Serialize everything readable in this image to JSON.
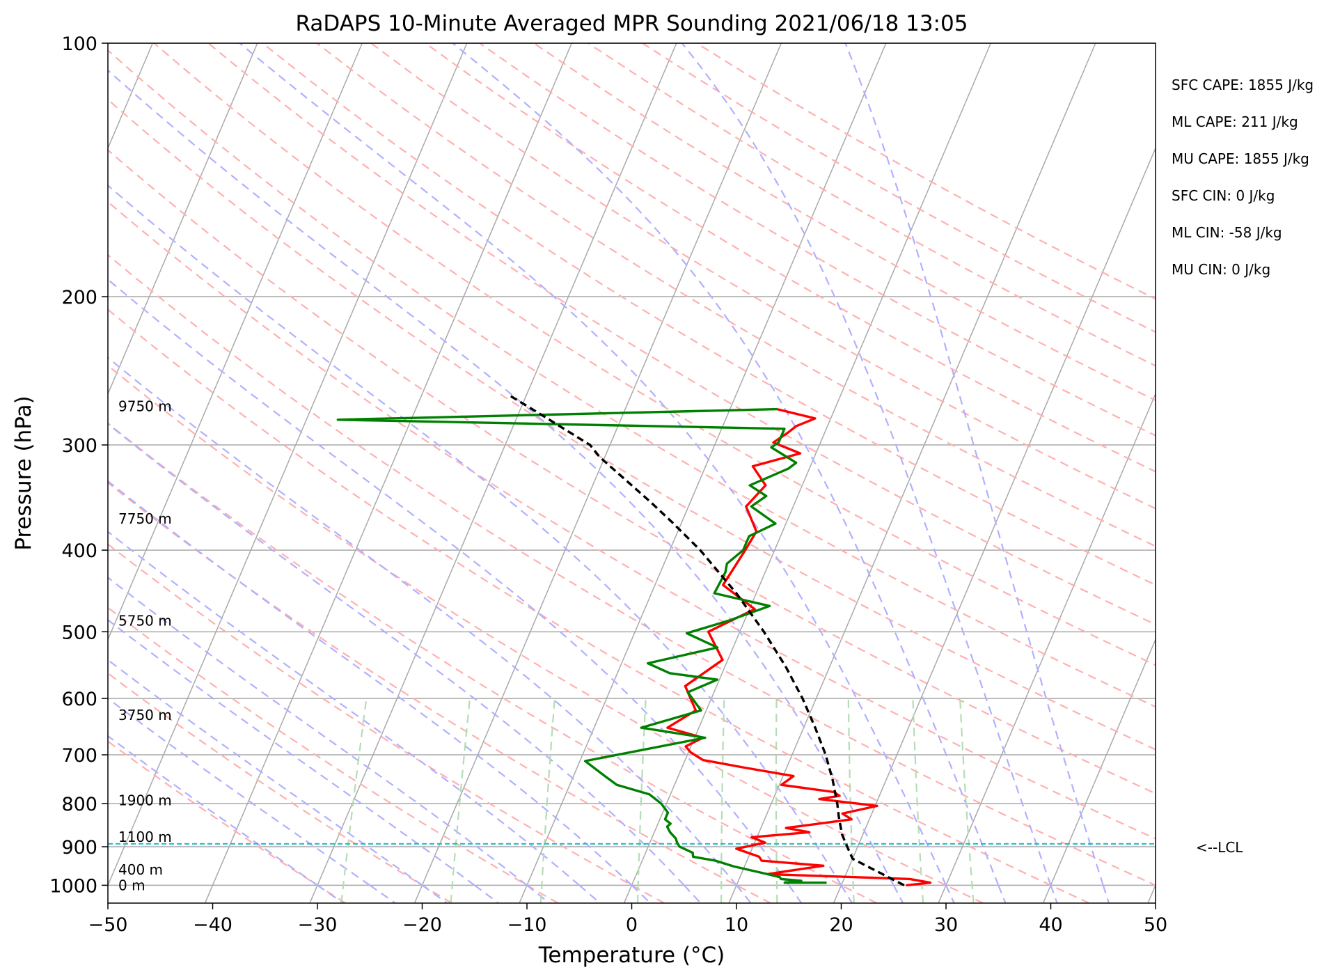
{
  "chart_data": {
    "type": "line",
    "title": "RaDAPS 10-Minute Averaged MPR Sounding 2021/06/18 13:05",
    "xlabel": "Temperature (°C)",
    "ylabel": "Pressure (hPa)",
    "xlim": [
      -50,
      50
    ],
    "ylim": [
      1050,
      100
    ],
    "y_scale": "log",
    "grid": true,
    "x_ticks": [
      "−50",
      "−40",
      "−30",
      "−20",
      "−10",
      "0",
      "10",
      "20",
      "30",
      "40",
      "50"
    ],
    "y_ticks": [
      "100",
      "200",
      "300",
      "400",
      "500",
      "600",
      "700",
      "800",
      "900",
      "1000"
    ],
    "series": [
      {
        "kind": "temperature",
        "color": "#ff0000",
        "points": [
          [
            26.2,
            1000
          ],
          [
            28.4,
            993
          ],
          [
            26.3,
            983
          ],
          [
            12.5,
            970
          ],
          [
            17.5,
            948
          ],
          [
            11.4,
            935
          ],
          [
            11.0,
            925
          ],
          [
            8.5,
            905
          ],
          [
            11.0,
            890
          ],
          [
            9.5,
            877
          ],
          [
            14.8,
            865
          ],
          [
            12.4,
            855
          ],
          [
            18.3,
            835
          ],
          [
            17.2,
            822
          ],
          [
            20.2,
            805
          ],
          [
            14.4,
            790
          ],
          [
            16.2,
            783
          ],
          [
            15.5,
            775
          ],
          [
            10.2,
            760
          ],
          [
            11.0,
            742
          ],
          [
            6.0,
            725
          ],
          [
            1.7,
            710
          ],
          [
            0.2,
            695
          ],
          [
            -0.5,
            684
          ],
          [
            0.8,
            668
          ],
          [
            -3.0,
            650
          ],
          [
            -1.0,
            620
          ],
          [
            -3.0,
            580
          ],
          [
            -0.5,
            540
          ],
          [
            -3.0,
            500
          ],
          [
            0.5,
            470
          ],
          [
            -3.5,
            440
          ],
          [
            -2.8,
            400
          ],
          [
            -2.5,
            380
          ],
          [
            -4.5,
            355
          ],
          [
            -3.5,
            335
          ],
          [
            -5.5,
            318
          ],
          [
            -1.5,
            307
          ],
          [
            -4.5,
            298
          ],
          [
            -3.5,
            290
          ],
          [
            -3.0,
            285
          ],
          [
            -1.5,
            279
          ],
          [
            -5.5,
            272
          ]
        ]
      },
      {
        "kind": "dewpoint",
        "color": "#008000",
        "points": [
          [
            18.5,
            993
          ],
          [
            14.5,
            993
          ],
          [
            16.0,
            988
          ],
          [
            14.0,
            983
          ],
          [
            13.8,
            978
          ],
          [
            12.5,
            970
          ],
          [
            9.0,
            950
          ],
          [
            7.0,
            935
          ],
          [
            4.7,
            925
          ],
          [
            4.5,
            915
          ],
          [
            3.0,
            900
          ],
          [
            2.6,
            890
          ],
          [
            2.3,
            880
          ],
          [
            1.5,
            865
          ],
          [
            1.0,
            852
          ],
          [
            1.2,
            845
          ],
          [
            0.5,
            835
          ],
          [
            0.5,
            820
          ],
          [
            -0.5,
            800
          ],
          [
            -2.0,
            780
          ],
          [
            -5.5,
            760
          ],
          [
            -7.0,
            742
          ],
          [
            -9.5,
            712
          ],
          [
            1.0,
            668
          ],
          [
            -5.5,
            650
          ],
          [
            -0.5,
            620
          ],
          [
            -2.5,
            590
          ],
          [
            -0.2,
            570
          ],
          [
            -5.0,
            560
          ],
          [
            -7.5,
            545
          ],
          [
            -1.5,
            522
          ],
          [
            -5.0,
            502
          ],
          [
            -1.5,
            485
          ],
          [
            1.8,
            466
          ],
          [
            -4.0,
            450
          ],
          [
            -3.8,
            425
          ],
          [
            -4.0,
            415
          ],
          [
            -3.0,
            400
          ],
          [
            -3.0,
            385
          ],
          [
            -1.0,
            372
          ],
          [
            -4.0,
            355
          ],
          [
            -3.0,
            345
          ],
          [
            -5.0,
            335
          ],
          [
            -2.0,
            320
          ],
          [
            -1.5,
            315
          ],
          [
            -4.5,
            302
          ],
          [
            -4.0,
            298
          ],
          [
            -4.0,
            287
          ],
          [
            -47.0,
            280
          ],
          [
            -5.5,
            272
          ]
        ]
      },
      {
        "kind": "parcel",
        "color": "#000000",
        "dashed": true,
        "points": [
          [
            26.0,
            1000
          ],
          [
            20.0,
            930
          ],
          [
            18.8,
            894
          ],
          [
            18.0,
            870
          ],
          [
            17.0,
            830
          ],
          [
            16.3,
            800
          ],
          [
            14.9,
            750
          ],
          [
            13.2,
            700
          ],
          [
            11.1,
            650
          ],
          [
            8.7,
            600
          ],
          [
            5.8,
            550
          ],
          [
            2.3,
            500
          ],
          [
            -1.9,
            450
          ],
          [
            -7.1,
            400
          ],
          [
            -11.0,
            370
          ],
          [
            -13.9,
            350
          ],
          [
            -20.5,
            310
          ],
          [
            -21.9,
            300
          ],
          [
            -28.1,
            275
          ],
          [
            -31.6,
            262
          ]
        ]
      }
    ],
    "lcl": {
      "pressure": 893,
      "label": "<--LCL",
      "color": "#17becf"
    },
    "height_labels": [
      {
        "text": "9750 m",
        "pressure": 270
      },
      {
        "text": "7750 m",
        "pressure": 367
      },
      {
        "text": "5750 m",
        "pressure": 485
      },
      {
        "text": "3750 m",
        "pressure": 628
      },
      {
        "text": "1900 m",
        "pressure": 793
      },
      {
        "text": "1100 m",
        "pressure": 876
      },
      {
        "text": "400 m",
        "pressure": 958
      },
      {
        "text": "0 m",
        "pressure": 1000
      }
    ],
    "stats": [
      "SFC CAPE: 1855 J/kg",
      "ML CAPE: 211 J/kg",
      "MU CAPE: 1855 J/kg",
      "SFC CIN: 0 J/kg",
      "ML CIN: -58 J/kg",
      "MU CIN: 0 J/kg"
    ],
    "background_lines": {
      "isotherms_color": "#a9a9a9",
      "dry_adiabats_color": "#ffb0b0",
      "moist_adiabats_color": "#b0b0ff",
      "mixing_ratio_color": "#b3deb3"
    }
  }
}
